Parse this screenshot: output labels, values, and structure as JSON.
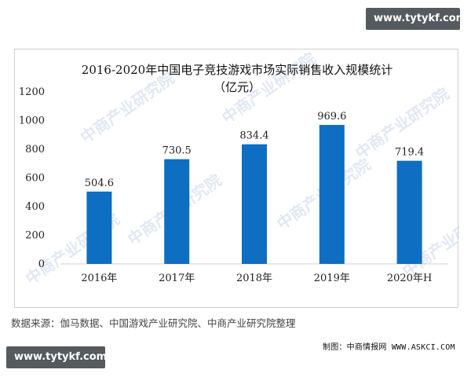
{
  "badges": {
    "top": "www.tytykf.com",
    "bottom": "www.tytykf.com"
  },
  "watermark": "中商产业研究院",
  "credit": "制图：中商情报网 WWW.ASKCI.COM",
  "source": "数据来源：伽马数据、中国游戏产业研究院、中商产业研究院整理",
  "colors": {
    "bar": "#0e6ec1",
    "axis": "#cfcfcf"
  },
  "chart_data": {
    "type": "bar",
    "title_line1": "2016-2020年中国电子竞技游戏市场实际销售收入规模统计",
    "title_line2": "（亿元）",
    "categories": [
      "2016年",
      "2017年",
      "2018年",
      "2019年",
      "2020年H"
    ],
    "values": [
      504.6,
      730.5,
      834.4,
      969.6,
      719.4
    ],
    "data_labels": [
      "504.6",
      "730.5",
      "834.4",
      "969.6",
      "719.4"
    ],
    "yticks": [
      "0",
      "200",
      "400",
      "600",
      "800",
      "1000",
      "1200"
    ],
    "ylim": [
      0,
      1200
    ],
    "grid": false
  }
}
